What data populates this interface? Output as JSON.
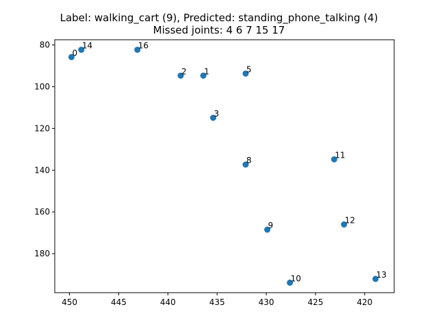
{
  "chart_data": {
    "type": "scatter",
    "title_line1": "Label: walking_cart (9), Predicted: standing_phone_talking (4)",
    "title_line2": "Missed joints: 4 6 7 15 17",
    "xlabel": "",
    "ylabel": "",
    "xlim": [
      451.5,
      417.0
    ],
    "ylim": [
      198.7,
      77.5
    ],
    "x_inverted": true,
    "y_inverted": true,
    "grid": false,
    "marker_color": "#1f77b4",
    "x_ticks": [
      450,
      445,
      440,
      435,
      430,
      425,
      420
    ],
    "y_ticks": [
      80,
      100,
      120,
      140,
      160,
      180
    ],
    "points": [
      {
        "label": "0",
        "x": 449.8,
        "y": 85.8
      },
      {
        "label": "14",
        "x": 448.8,
        "y": 82.3
      },
      {
        "label": "16",
        "x": 443.1,
        "y": 82.3
      },
      {
        "label": "2",
        "x": 438.7,
        "y": 94.7
      },
      {
        "label": "1",
        "x": 436.4,
        "y": 94.7
      },
      {
        "label": "5",
        "x": 432.1,
        "y": 93.7
      },
      {
        "label": "3",
        "x": 435.4,
        "y": 114.9
      },
      {
        "label": "8",
        "x": 432.1,
        "y": 137.3
      },
      {
        "label": "11",
        "x": 423.1,
        "y": 134.8
      },
      {
        "label": "12",
        "x": 422.1,
        "y": 166.0
      },
      {
        "label": "9",
        "x": 429.9,
        "y": 168.5
      },
      {
        "label": "10",
        "x": 427.6,
        "y": 193.9
      },
      {
        "label": "13",
        "x": 418.9,
        "y": 192.1
      }
    ]
  }
}
